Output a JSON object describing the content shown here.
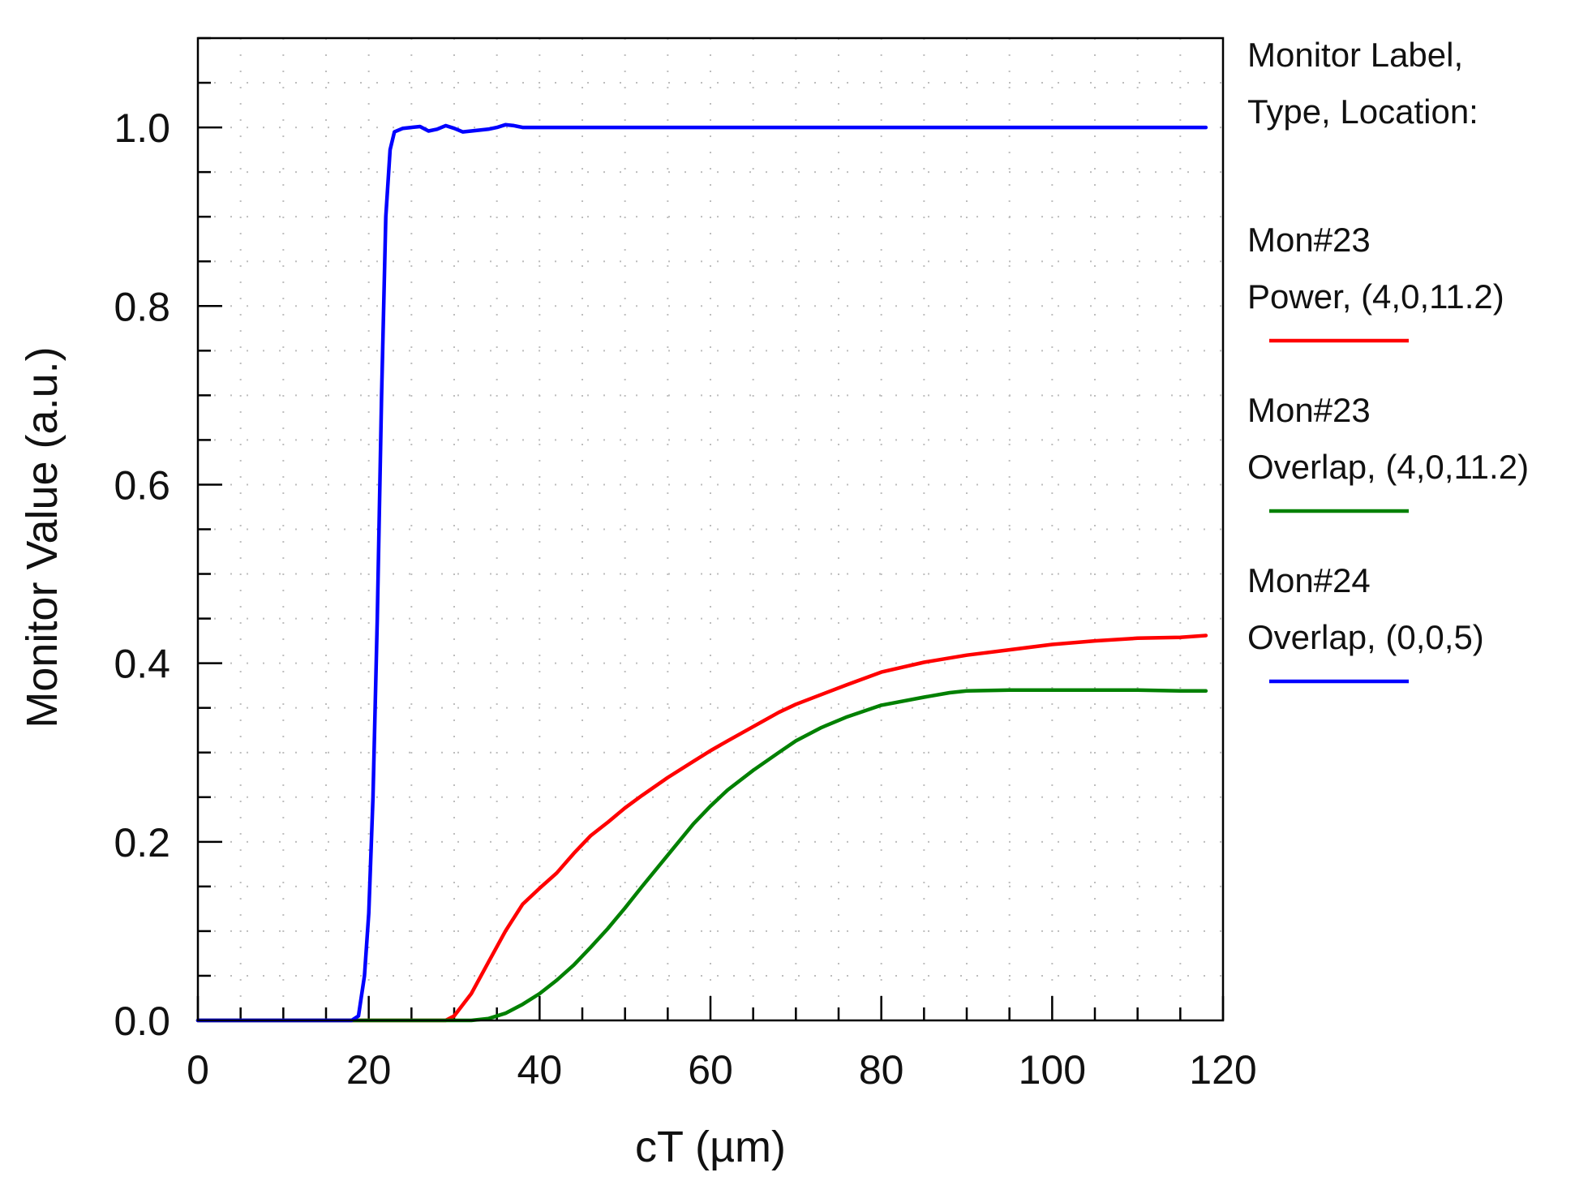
{
  "chart_data": {
    "type": "line",
    "title": "",
    "xlabel": "cT (µm)",
    "ylabel": "Monitor Value (a.u.)",
    "xlim": [
      0,
      120
    ],
    "ylim": [
      0,
      1.1
    ],
    "x_ticks": [
      0,
      20,
      40,
      60,
      80,
      100,
      120
    ],
    "x_tick_labels": [
      "0",
      "20",
      "40",
      "60",
      "80",
      "100",
      "120"
    ],
    "y_ticks": [
      0.0,
      0.2,
      0.4,
      0.6,
      0.8,
      1.0
    ],
    "y_tick_labels": [
      "0.0",
      "0.2",
      "0.4",
      "0.6",
      "0.8",
      "1.0"
    ],
    "grid": true,
    "legend_position": "right",
    "legend_header": [
      "Monitor Label,",
      "Type, Location:"
    ],
    "series": [
      {
        "label_line1": "Mon#23",
        "label_line2": "Power, (4,0,11.2)",
        "color": "#ff0000",
        "points": [
          [
            0,
            0
          ],
          [
            28,
            0
          ],
          [
            29,
            0
          ],
          [
            30,
            0.005
          ],
          [
            32,
            0.03
          ],
          [
            34,
            0.065
          ],
          [
            36,
            0.1
          ],
          [
            38,
            0.13
          ],
          [
            40,
            0.148
          ],
          [
            42,
            0.165
          ],
          [
            44,
            0.187
          ],
          [
            46,
            0.207
          ],
          [
            48,
            0.222
          ],
          [
            50,
            0.238
          ],
          [
            52,
            0.252
          ],
          [
            55,
            0.272
          ],
          [
            58,
            0.29
          ],
          [
            60,
            0.302
          ],
          [
            62,
            0.313
          ],
          [
            65,
            0.329
          ],
          [
            68,
            0.345
          ],
          [
            70,
            0.354
          ],
          [
            73,
            0.365
          ],
          [
            76,
            0.376
          ],
          [
            80,
            0.39
          ],
          [
            85,
            0.401
          ],
          [
            90,
            0.409
          ],
          [
            95,
            0.415
          ],
          [
            100,
            0.421
          ],
          [
            105,
            0.425
          ],
          [
            110,
            0.428
          ],
          [
            115,
            0.429
          ],
          [
            118,
            0.431
          ]
        ]
      },
      {
        "label_line1": "Mon#23",
        "label_line2": "Overlap, (4,0,11.2)",
        "color": "#008000",
        "points": [
          [
            0,
            0
          ],
          [
            30,
            0
          ],
          [
            32,
            0
          ],
          [
            34,
            0.002
          ],
          [
            36,
            0.008
          ],
          [
            38,
            0.018
          ],
          [
            40,
            0.03
          ],
          [
            42,
            0.045
          ],
          [
            44,
            0.062
          ],
          [
            46,
            0.082
          ],
          [
            48,
            0.103
          ],
          [
            50,
            0.126
          ],
          [
            52,
            0.15
          ],
          [
            55,
            0.185
          ],
          [
            58,
            0.22
          ],
          [
            60,
            0.24
          ],
          [
            62,
            0.258
          ],
          [
            65,
            0.28
          ],
          [
            68,
            0.3
          ],
          [
            70,
            0.313
          ],
          [
            73,
            0.328
          ],
          [
            76,
            0.34
          ],
          [
            80,
            0.353
          ],
          [
            85,
            0.362
          ],
          [
            88,
            0.367
          ],
          [
            90,
            0.369
          ],
          [
            95,
            0.37
          ],
          [
            100,
            0.37
          ],
          [
            105,
            0.37
          ],
          [
            110,
            0.37
          ],
          [
            115,
            0.369
          ],
          [
            118,
            0.369
          ]
        ]
      },
      {
        "label_line1": "Mon#24",
        "label_line2": "Overlap, (0,0,5)",
        "color": "#0000ff",
        "points": [
          [
            0,
            0
          ],
          [
            18,
            0
          ],
          [
            18.8,
            0.005
          ],
          [
            19.5,
            0.05
          ],
          [
            20,
            0.12
          ],
          [
            20.5,
            0.25
          ],
          [
            21,
            0.45
          ],
          [
            21.5,
            0.7
          ],
          [
            22,
            0.9
          ],
          [
            22.5,
            0.975
          ],
          [
            23,
            0.995
          ],
          [
            24,
            0.999
          ],
          [
            25,
            1.0
          ],
          [
            26,
            1.001
          ],
          [
            27,
            0.996
          ],
          [
            28,
            0.998
          ],
          [
            29,
            1.002
          ],
          [
            30,
            0.999
          ],
          [
            31,
            0.995
          ],
          [
            32,
            0.996
          ],
          [
            33,
            0.997
          ],
          [
            34,
            0.998
          ],
          [
            35,
            1.0
          ],
          [
            36,
            1.003
          ],
          [
            37,
            1.002
          ],
          [
            38,
            1.0
          ],
          [
            40,
            1.0
          ],
          [
            42,
            1.0
          ],
          [
            44,
            1.0
          ],
          [
            50,
            1.0
          ],
          [
            60,
            1.0
          ],
          [
            80,
            1.0
          ],
          [
            100,
            1.0
          ],
          [
            118,
            1.0
          ]
        ]
      }
    ]
  }
}
